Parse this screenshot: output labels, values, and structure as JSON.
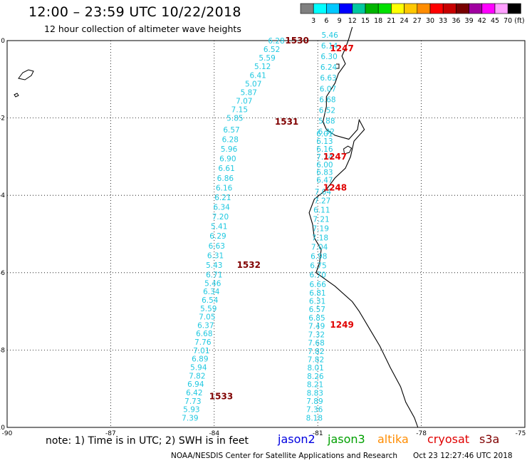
{
  "header": {
    "title": "12:00 – 23:59 UTC 10/22/2018",
    "subtitle": "12 hour collection of altimeter wave heights"
  },
  "colorbar": {
    "labels": [
      "3",
      "6",
      "9",
      "12",
      "15",
      "18",
      "21",
      "24",
      "27",
      "30",
      "33",
      "36",
      "39",
      "42",
      "45",
      "70"
    ],
    "unit": "(ft)",
    "colors": [
      "#808080",
      "#00ffff",
      "#00c8ff",
      "#0000ff",
      "#00c8a0",
      "#00b400",
      "#00e000",
      "#ffff00",
      "#ffc800",
      "#ff8c00",
      "#ff0000",
      "#c80000",
      "#780000",
      "#a000a0",
      "#ff00ff",
      "#ffa0ff",
      "#000000"
    ]
  },
  "axes": {
    "x_ticks": [
      "-90",
      "-87",
      "-84",
      "-81",
      "-78",
      "-75"
    ],
    "y_ticks": [
      "0",
      "-2",
      "-4",
      "-6",
      "-8",
      "-10"
    ]
  },
  "tracks": [
    {
      "name": "track-1530",
      "time": "1530",
      "time_color": "#800000",
      "label_lon": -81.6,
      "label_lat": 0.0,
      "color": "#20c8e0",
      "start": [
        -82.2,
        0.0
      ],
      "end": [
        -83.4,
        -2.0
      ],
      "values": [
        "6.28",
        "6.52",
        "5.59",
        "5.12",
        "6.41",
        "5.07",
        "5.87",
        "7.07",
        "7.15",
        "5.85"
      ]
    },
    {
      "name": "track-1531",
      "time": "1531",
      "time_color": "#800000",
      "label_lon": -81.9,
      "label_lat": -2.1,
      "color": "#20c8e0",
      "start": [
        -83.5,
        -2.3
      ],
      "end": [
        -84.0,
        -5.8
      ],
      "values": [
        "6.57",
        "6.28",
        "5.96",
        "6.90",
        "6.61",
        "6.86",
        "6.16",
        "6.21",
        "6.34",
        "7.20",
        "5.41",
        "6.29",
        "6.63",
        "6.31",
        "5.43"
      ]
    },
    {
      "name": "track-1532",
      "time": "1532",
      "time_color": "#800000",
      "label_lon": -83.0,
      "label_lat": -5.8,
      "color": "#20c8e0",
      "start": [
        -84.0,
        -6.05
      ],
      "end": [
        -84.7,
        -9.75
      ],
      "values": [
        "6.71",
        "5.46",
        "6.34",
        "6.54",
        "5.59",
        "7.05",
        "6.37",
        "6.68",
        "7.76",
        "7.01",
        "6.89",
        "5.94",
        "7.82",
        "6.94",
        "6.42",
        "7.73",
        "5.93",
        "7.39"
      ]
    },
    {
      "name": "track-1247",
      "time": "1247",
      "time_color": "#e00000",
      "label_lon": -80.3,
      "label_lat": -0.2,
      "color": "#20c8e0",
      "start": [
        -80.65,
        0.15
      ],
      "end": [
        -80.75,
        -2.35
      ],
      "values": [
        "5.46",
        "6.14",
        "6.30",
        "6.24",
        "6.63",
        "6.07",
        "6.68",
        "6.52",
        "5.88",
        "6.32"
      ]
    },
    {
      "name": "track-1247b",
      "time": "1247",
      "time_color": "#e00000",
      "label_lon": -80.5,
      "label_lat": -3.0,
      "color": "#20c8e0",
      "start": [
        -80.8,
        -2.4
      ],
      "end": [
        -80.8,
        -3.6
      ],
      "values": [
        "6.01",
        "6.13",
        "6.16",
        "7.24",
        "6.00",
        "6.83",
        "6.47"
      ]
    },
    {
      "name": "track-1248",
      "time": "1248",
      "time_color": "#e00000",
      "label_lon": -80.5,
      "label_lat": -3.8,
      "color": "#20c8e0",
      "start": [
        -80.85,
        -3.9
      ],
      "end": [
        -81.0,
        -6.05
      ],
      "values": [
        "7.04",
        "7.27",
        "6.11",
        "7.21",
        "7.19",
        "7.18",
        "7.04",
        "6.98",
        "6.75",
        "6.70"
      ]
    },
    {
      "name": "track-1249",
      "time": "1249",
      "time_color": "#e00000",
      "label_lon": -80.3,
      "label_lat": -7.35,
      "color": "#20c8e0",
      "start": [
        -81.0,
        -6.3
      ],
      "end": [
        -81.1,
        -9.75
      ],
      "values": [
        "6.66",
        "6.81",
        "6.31",
        "6.57",
        "6.85",
        "7.49",
        "7.32",
        "7.68",
        "7.82",
        "7.82",
        "8.01",
        "8.26",
        "8.21",
        "8.83",
        "7.89",
        "7.36",
        "8.18"
      ]
    }
  ],
  "extra_label": {
    "time": "1533",
    "color": "#800000",
    "lon": -83.8,
    "lat": -9.2
  },
  "footer": {
    "note": "note: 1) Time is in UTC; 2) SWH is in feet",
    "missions": [
      {
        "name": "jason2",
        "color": "#0000e0"
      },
      {
        "name": "jason3",
        "color": "#00a000"
      },
      {
        "name": "altika",
        "color": "#ff8c00"
      },
      {
        "name": "cryosat",
        "color": "#e00000"
      },
      {
        "name": "s3a",
        "color": "#800000"
      }
    ],
    "credit": "NOAA/NESDIS Center for Satellite Applications and Research",
    "timestamp": "Oct 23 12:27:46 UTC 2018"
  }
}
